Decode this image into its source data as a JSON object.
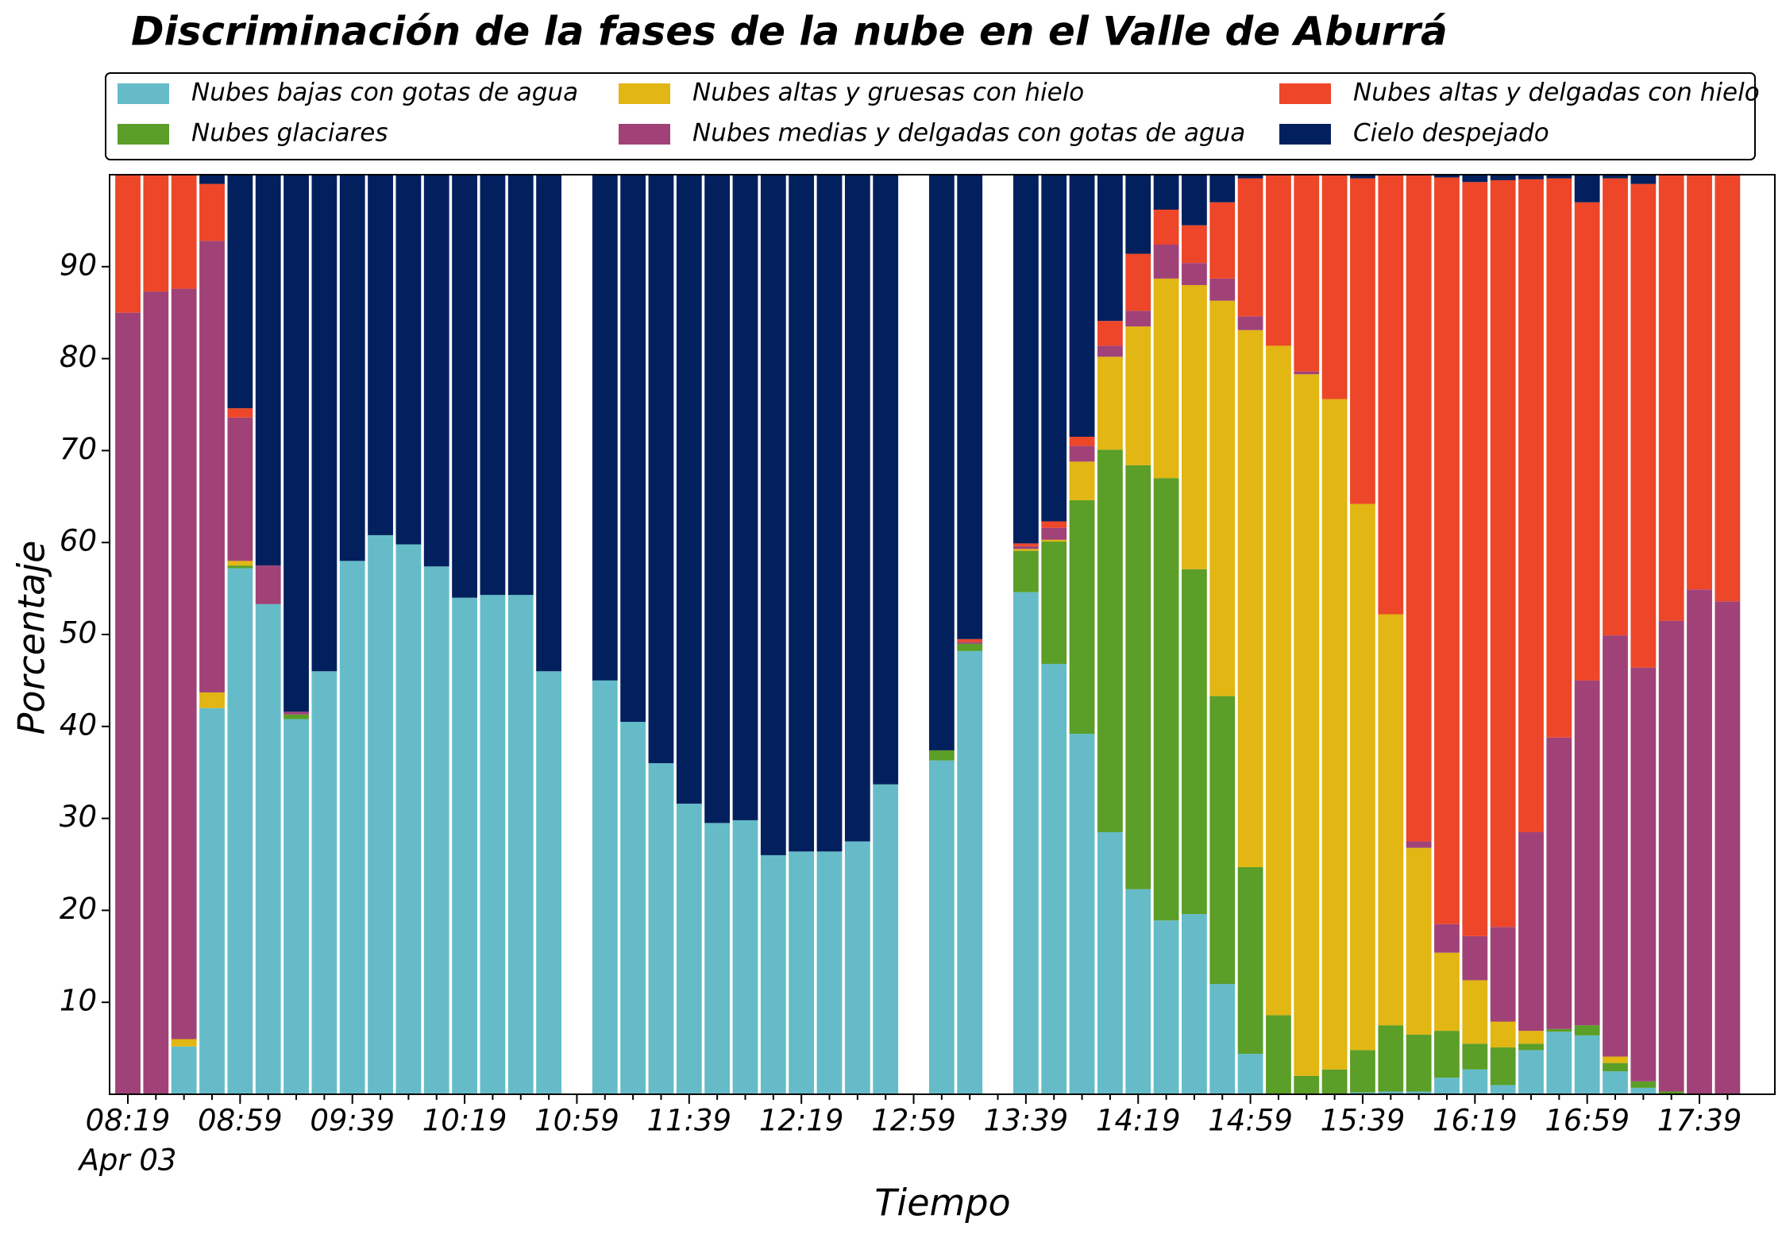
{
  "chart_data": {
    "type": "stacked_bar",
    "title": "Discriminación de la fases de la nube en el Valle de Aburrá",
    "x_label": "Tiempo",
    "y_label": "Porcentaje",
    "x_date_label": "Apr 03",
    "categories": [
      "08:19",
      null,
      null,
      null,
      "08:59",
      null,
      null,
      null,
      "09:39",
      null,
      null,
      null,
      "10:19",
      null,
      null,
      null,
      "10:59",
      null,
      null,
      null,
      "11:39",
      null,
      null,
      null,
      "12:19",
      null,
      null,
      null,
      "12:59",
      null,
      null,
      null,
      "13:39",
      null,
      null,
      null,
      "14:19",
      null,
      null,
      null,
      "14:59",
      null,
      null,
      null,
      "15:39",
      null,
      null,
      null,
      "16:19",
      null,
      null,
      null,
      "16:59",
      null,
      null,
      null,
      "17:39",
      null
    ],
    "ylim": [
      0,
      100
    ],
    "yticks": [
      10,
      20,
      30,
      40,
      50,
      60,
      70,
      80,
      90
    ],
    "legend": "top",
    "series": [
      {
        "name": "Nubes bajas con gotas de agua",
        "color": "#65bcc8",
        "values": [
          0,
          0,
          5.2,
          42,
          57.2,
          53.3,
          40.8,
          46,
          58,
          60.8,
          59.8,
          57.4,
          54,
          54.3,
          54.3,
          46,
          null,
          45,
          40.5,
          36,
          31.6,
          29.5,
          29.8,
          26,
          26.4,
          26.4,
          27.5,
          33.7,
          null,
          36.3,
          48.2,
          null,
          54.6,
          46.8,
          39.2,
          28.5,
          22.3,
          18.9,
          19.6,
          12,
          4.4,
          0,
          0,
          0,
          0.2,
          0.3,
          0.3,
          1.8,
          2.7,
          1,
          4.8,
          6.8,
          6.4,
          2.5,
          0.7,
          0,
          0,
          0
        ]
      },
      {
        "name": "Nubes glaciares",
        "color": "#5b9e28",
        "values": [
          0,
          0,
          0,
          0,
          0.3,
          0,
          0.5,
          0,
          0,
          0,
          0,
          0,
          0,
          0,
          0,
          0,
          null,
          0,
          0,
          0,
          0,
          0,
          0,
          0,
          0,
          0,
          0,
          0,
          null,
          1.1,
          0.8,
          null,
          4.5,
          13.3,
          25.4,
          41.6,
          46.1,
          48.1,
          37.5,
          31.3,
          20.3,
          8.6,
          2,
          2.7,
          4.6,
          7.2,
          6.2,
          5.1,
          2.8,
          4.1,
          0.7,
          0.3,
          1.1,
          0.9,
          0.7,
          0.3,
          0,
          0
        ]
      },
      {
        "name": "Nubes altas y gruesas con hielo",
        "color": "#e2b613",
        "values": [
          0,
          0,
          0.8,
          1.7,
          0.5,
          0,
          0,
          0,
          0,
          0,
          0,
          0,
          0,
          0,
          0,
          0,
          null,
          0,
          0,
          0,
          0,
          0,
          0,
          0,
          0,
          0,
          0,
          0,
          null,
          0,
          0,
          null,
          0.2,
          0.2,
          4.2,
          10.1,
          15.1,
          21.7,
          30.9,
          43,
          58.4,
          72.8,
          76.3,
          72.9,
          59.4,
          44.7,
          20.3,
          8.5,
          6.9,
          2.8,
          1.4,
          0,
          0,
          0.7,
          0,
          0,
          0,
          0
        ]
      },
      {
        "name": "Nubes medias y delgadas con gotas de agua",
        "color": "#a04278",
        "values": [
          85,
          87.3,
          81.6,
          49.1,
          15.6,
          4.2,
          0.3,
          0,
          0,
          0,
          0,
          0,
          0,
          0,
          0,
          0,
          null,
          0,
          0,
          0,
          0,
          0,
          0,
          0,
          0,
          0,
          0,
          0,
          null,
          0,
          0.2,
          null,
          0.3,
          1.3,
          1.7,
          1.2,
          1.7,
          3.7,
          2.4,
          2.4,
          1.5,
          0,
          0.3,
          0,
          0,
          0,
          0.7,
          3.1,
          4.8,
          10.3,
          21.6,
          31.7,
          37.5,
          45.8,
          45,
          51.2,
          54.9,
          53.6
        ]
      },
      {
        "name": "Nubes altas y delgadas con hielo",
        "color": "#ee4628",
        "values": [
          15,
          12.7,
          12.4,
          6.2,
          1,
          0,
          0,
          0,
          0,
          0,
          0,
          0,
          0,
          0,
          0,
          0,
          null,
          0,
          0,
          0,
          0,
          0,
          0,
          0,
          0,
          0,
          0,
          0,
          null,
          0,
          0.3,
          null,
          0.3,
          0.7,
          1,
          2.7,
          6.2,
          3.8,
          4.1,
          8.3,
          15,
          18.6,
          21.4,
          24.4,
          35.4,
          47.8,
          72.5,
          81.2,
          82,
          81.2,
          71,
          60.8,
          52,
          49.7,
          52.6,
          48.5,
          45.1,
          46.4
        ]
      },
      {
        "name": "Cielo despejado",
        "color": "#03205e",
        "values": [
          0,
          0,
          0,
          1,
          25.4,
          42.5,
          58.4,
          54,
          42,
          39.2,
          40.2,
          42.6,
          46,
          45.7,
          45.7,
          54,
          null,
          55,
          59.5,
          64,
          68.4,
          70.5,
          70.2,
          74,
          73.6,
          73.6,
          72.5,
          66.3,
          null,
          62.6,
          50.5,
          null,
          40.1,
          37.7,
          28.5,
          15.9,
          8.6,
          3.8,
          5.5,
          3,
          0.4,
          0,
          0,
          0,
          0.4,
          0,
          0,
          0.3,
          0.8,
          0.6,
          0.5,
          0.4,
          3,
          0.4,
          1,
          0,
          0,
          0
        ]
      }
    ]
  }
}
